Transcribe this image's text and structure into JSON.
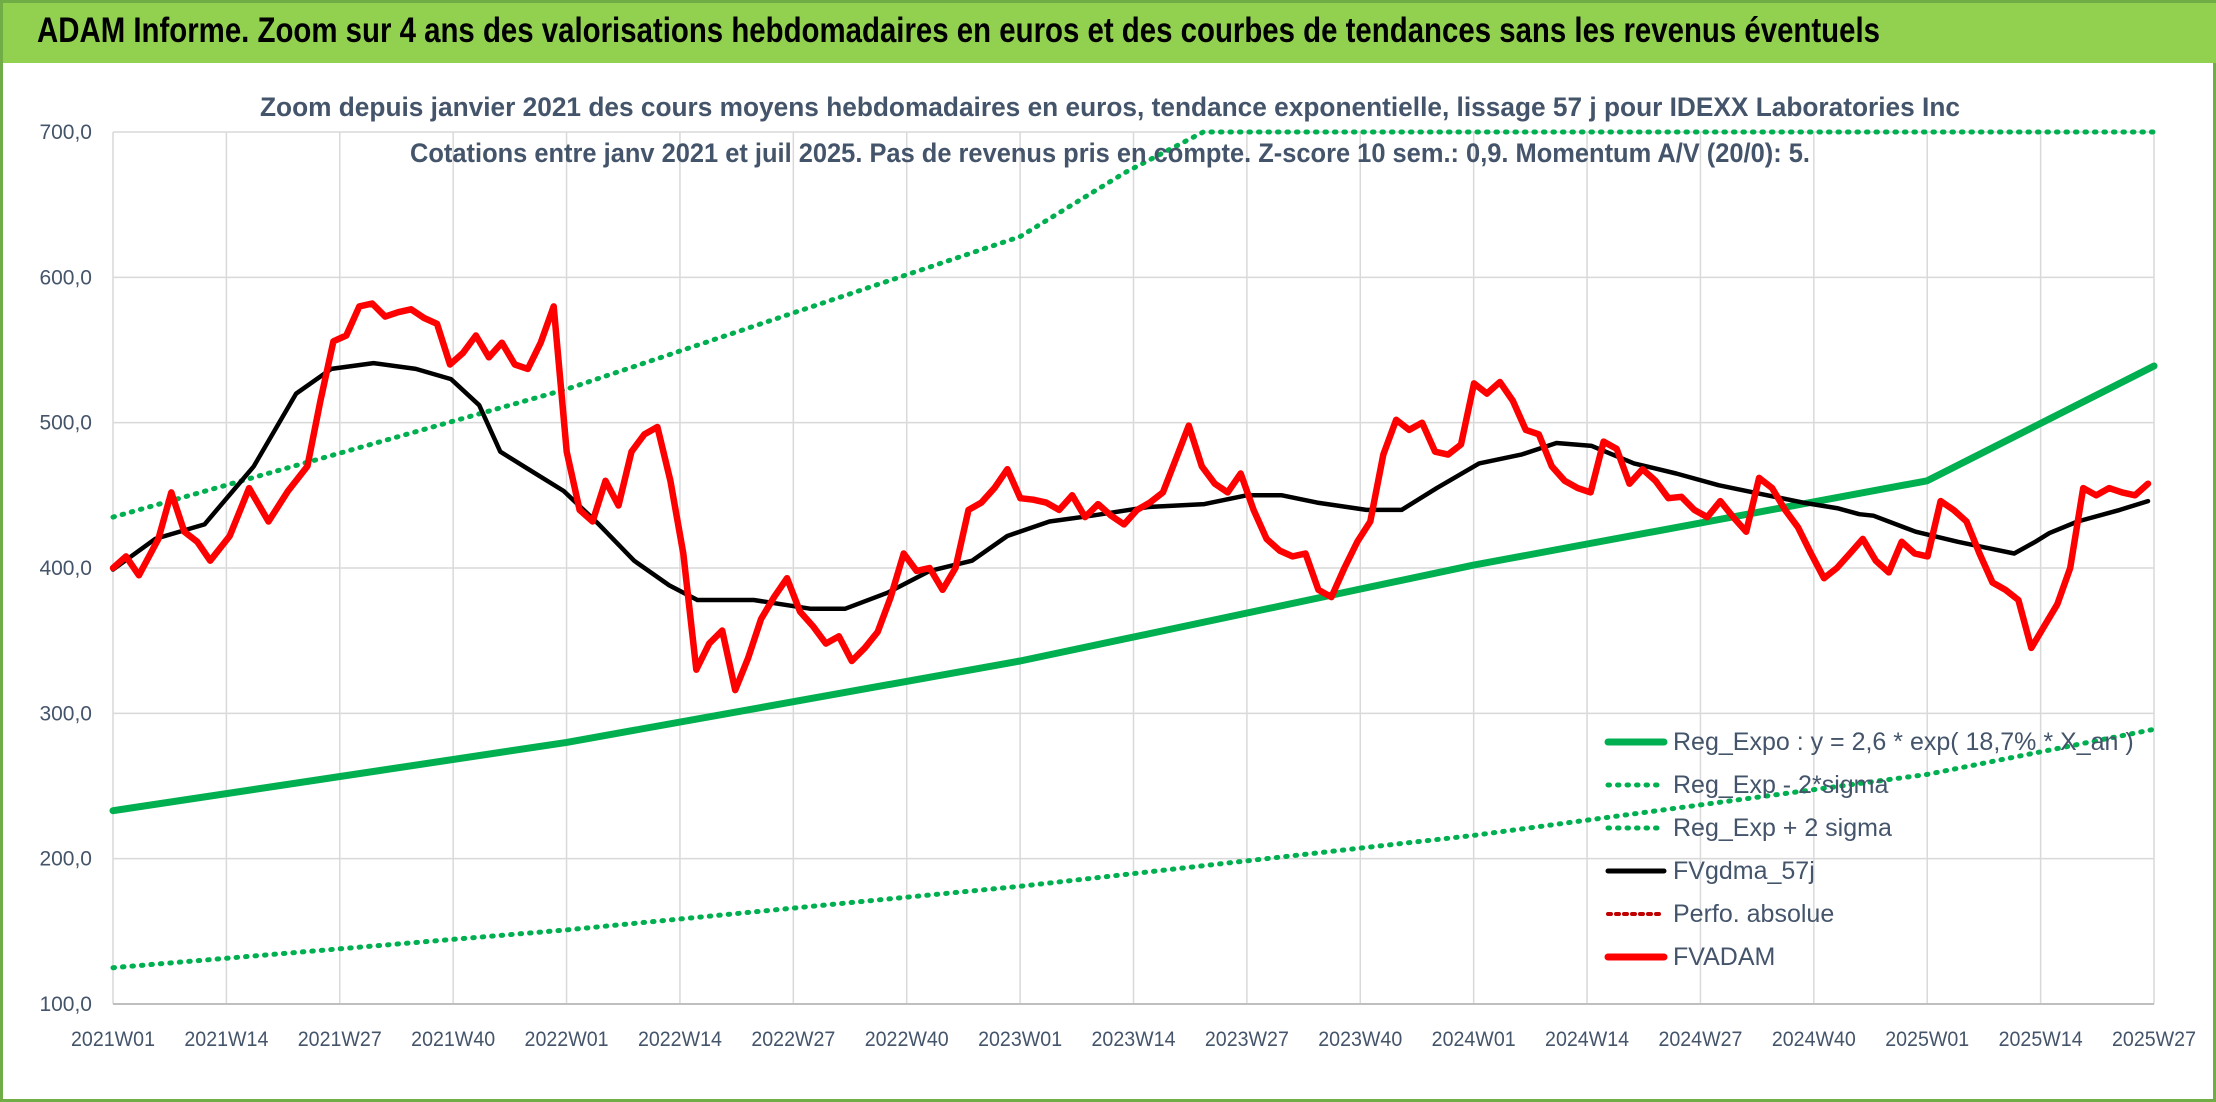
{
  "banner": {
    "title": "ADAM Informe. Zoom sur 4 ans des valorisations hebdomadaires en euros et des courbes de tendances sans les revenus éventuels"
  },
  "colors": {
    "banner": "#92d050",
    "frame": "#70ad47",
    "text": "#44546a",
    "regression": "#00b050",
    "average": "#000000",
    "price": "#ff0000",
    "perf": "#c00000",
    "grid": "#d9d9d9"
  },
  "chart_data": {
    "type": "line",
    "title": "Zoom depuis janvier 2021 des cours moyens hebdomadaires en euros, tendance exponentielle, lissage 57 j pour IDEXX Laboratories Inc",
    "subtitle": "Cotations entre janv 2021 et juil 2025. Pas de revenus pris en compte. Z-score 10 sem.: 0,9. Momentum A/V (20/0): 5.",
    "xlabel": "",
    "ylabel": "",
    "ylim": [
      100,
      700
    ],
    "yticks": [
      "100,0",
      "200,0",
      "300,0",
      "400,0",
      "500,0",
      "600,0",
      "700,0"
    ],
    "x_ticks": [
      "2021W01",
      "2021W14",
      "2021W27",
      "2021W40",
      "2022W01",
      "2022W14",
      "2022W27",
      "2022W40",
      "2023W01",
      "2023W14",
      "2023W27",
      "2023W40",
      "2024W01",
      "2024W14",
      "2024W27",
      "2024W40",
      "2025W01",
      "2025W14",
      "2025W27"
    ],
    "grid": true,
    "legend_position": "bottom-right",
    "legend": [
      {
        "name": "Reg_Expo : y = 2,6 * exp( 18,7% * X_an )",
        "style": "solid-green"
      },
      {
        "name": "Reg_Exp - 2*sigma",
        "style": "dotted-green"
      },
      {
        "name": "Reg_Exp + 2 sigma",
        "style": "dotted-green"
      },
      {
        "name": "FVgdma_57j",
        "style": "solid-black"
      },
      {
        "name": "Perfo. absolue",
        "style": "dotted-red"
      },
      {
        "name": "FVADAM",
        "style": "solid-red-thick"
      }
    ],
    "series": [
      {
        "name": "Reg_Expo : y = 2,6 * exp( 18,7% * X_an )",
        "points": [
          [
            0,
            233
          ],
          [
            52,
            280
          ],
          [
            104,
            336
          ],
          [
            156,
            402
          ],
          [
            208,
            460
          ],
          [
            234,
            539
          ]
        ]
      },
      {
        "name": "Reg_Exp - 2*sigma",
        "points": [
          [
            0,
            125
          ],
          [
            52,
            151
          ],
          [
            104,
            181
          ],
          [
            156,
            216
          ],
          [
            208,
            258
          ],
          [
            234,
            289
          ]
        ]
      },
      {
        "name": "Reg_Exp + 2 sigma",
        "points": [
          [
            0,
            435
          ],
          [
            52,
            523
          ],
          [
            104,
            628
          ],
          [
            116,
            672
          ],
          [
            125,
            700
          ],
          [
            234,
            700
          ]
        ]
      },
      {
        "name": "FVgdma_57j",
        "points": [
          [
            0,
            399
          ],
          [
            6,
            420
          ],
          [
            13,
            430
          ],
          [
            20,
            470
          ],
          [
            26,
            520
          ],
          [
            31,
            537
          ],
          [
            37,
            541
          ],
          [
            43,
            537
          ],
          [
            48,
            530
          ],
          [
            52,
            512
          ],
          [
            55,
            480
          ],
          [
            59,
            468
          ],
          [
            64,
            453
          ],
          [
            69,
            430
          ],
          [
            74,
            405
          ],
          [
            79,
            388
          ],
          [
            83,
            378
          ],
          [
            91,
            378
          ],
          [
            99,
            372
          ],
          [
            104,
            372
          ],
          [
            110,
            383
          ],
          [
            116,
            398
          ],
          [
            122,
            405
          ],
          [
            127,
            422
          ],
          [
            133,
            432
          ],
          [
            139,
            436
          ],
          [
            147,
            442
          ],
          [
            155,
            444
          ],
          [
            161,
            450
          ],
          [
            166,
            450
          ],
          [
            171,
            445
          ],
          [
            178,
            440
          ],
          [
            183,
            440
          ],
          [
            188,
            455
          ],
          [
            194,
            472
          ],
          [
            200,
            478
          ],
          [
            205,
            486
          ],
          [
            210,
            484
          ],
          [
            216,
            472
          ],
          [
            222,
            465
          ],
          [
            228,
            457
          ],
          [
            234,
            451
          ],
          [
            240,
            445
          ],
          [
            245,
            441
          ],
          [
            248,
            437
          ],
          [
            250,
            436
          ],
          [
            256,
            425
          ],
          [
            262,
            418
          ],
          [
            266,
            414
          ],
          [
            270,
            410
          ],
          [
            273,
            418
          ],
          [
            275,
            424
          ],
          [
            279,
            432
          ],
          [
            285,
            440
          ],
          [
            289,
            446
          ]
        ]
      },
      {
        "name": "FVADAM",
        "points": [
          [
            0,
            400
          ],
          [
            2,
            408
          ],
          [
            4,
            395
          ],
          [
            7,
            420
          ],
          [
            9,
            452
          ],
          [
            11,
            425
          ],
          [
            13,
            418
          ],
          [
            15,
            405
          ],
          [
            18,
            422
          ],
          [
            21,
            455
          ],
          [
            24,
            432
          ],
          [
            27,
            453
          ],
          [
            30,
            470
          ],
          [
            32,
            515
          ],
          [
            34,
            556
          ],
          [
            36,
            560
          ],
          [
            38,
            580
          ],
          [
            40,
            582
          ],
          [
            42,
            573
          ],
          [
            44,
            576
          ],
          [
            46,
            578
          ],
          [
            48,
            572
          ],
          [
            50,
            568
          ],
          [
            52,
            540
          ],
          [
            54,
            548
          ],
          [
            56,
            560
          ],
          [
            58,
            545
          ],
          [
            60,
            555
          ],
          [
            62,
            540
          ],
          [
            64,
            537
          ],
          [
            66,
            555
          ],
          [
            68,
            580
          ],
          [
            70,
            480
          ],
          [
            72,
            440
          ],
          [
            74,
            432
          ],
          [
            76,
            460
          ],
          [
            78,
            443
          ],
          [
            80,
            480
          ],
          [
            82,
            492
          ],
          [
            84,
            497
          ],
          [
            86,
            460
          ],
          [
            88,
            410
          ],
          [
            90,
            330
          ],
          [
            92,
            348
          ],
          [
            94,
            357
          ],
          [
            96,
            316
          ],
          [
            98,
            338
          ],
          [
            100,
            365
          ],
          [
            102,
            380
          ],
          [
            104,
            393
          ],
          [
            106,
            370
          ],
          [
            108,
            360
          ],
          [
            110,
            348
          ],
          [
            112,
            353
          ],
          [
            114,
            336
          ],
          [
            116,
            345
          ],
          [
            118,
            356
          ],
          [
            120,
            380
          ],
          [
            122,
            410
          ],
          [
            124,
            398
          ],
          [
            126,
            400
          ],
          [
            128,
            385
          ],
          [
            130,
            400
          ],
          [
            132,
            440
          ],
          [
            134,
            445
          ],
          [
            136,
            455
          ],
          [
            138,
            468
          ],
          [
            140,
            448
          ],
          [
            142,
            447
          ],
          [
            144,
            445
          ],
          [
            146,
            440
          ],
          [
            148,
            450
          ],
          [
            150,
            435
          ],
          [
            152,
            444
          ],
          [
            154,
            436
          ],
          [
            156,
            430
          ],
          [
            158,
            440
          ],
          [
            160,
            445
          ],
          [
            162,
            452
          ],
          [
            164,
            475
          ],
          [
            166,
            498
          ],
          [
            168,
            470
          ],
          [
            170,
            458
          ],
          [
            172,
            452
          ],
          [
            174,
            465
          ],
          [
            176,
            440
          ],
          [
            178,
            420
          ],
          [
            180,
            412
          ],
          [
            182,
            408
          ],
          [
            184,
            410
          ],
          [
            186,
            385
          ],
          [
            188,
            380
          ],
          [
            190,
            400
          ],
          [
            192,
            418
          ],
          [
            194,
            432
          ],
          [
            196,
            478
          ],
          [
            198,
            502
          ],
          [
            200,
            495
          ],
          [
            202,
            500
          ],
          [
            204,
            480
          ],
          [
            206,
            478
          ],
          [
            208,
            485
          ],
          [
            210,
            527
          ],
          [
            212,
            520
          ],
          [
            214,
            528
          ],
          [
            216,
            515
          ],
          [
            218,
            495
          ],
          [
            220,
            492
          ],
          [
            222,
            470
          ],
          [
            224,
            460
          ],
          [
            226,
            455
          ],
          [
            228,
            452
          ],
          [
            230,
            487
          ],
          [
            232,
            482
          ],
          [
            234,
            458
          ],
          [
            236,
            468
          ],
          [
            238,
            460
          ],
          [
            240,
            448
          ],
          [
            242,
            449
          ],
          [
            244,
            440
          ],
          [
            246,
            435
          ],
          [
            248,
            446
          ],
          [
            250,
            435
          ],
          [
            252,
            425
          ],
          [
            254,
            462
          ],
          [
            256,
            455
          ],
          [
            258,
            440
          ],
          [
            260,
            428
          ],
          [
            262,
            410
          ],
          [
            264,
            393
          ],
          [
            266,
            400
          ],
          [
            268,
            410
          ],
          [
            270,
            420
          ],
          [
            272,
            405
          ],
          [
            274,
            397
          ],
          [
            276,
            418
          ],
          [
            278,
            410
          ],
          [
            280,
            408
          ],
          [
            282,
            446
          ],
          [
            284,
            440
          ],
          [
            286,
            432
          ],
          [
            288,
            410
          ],
          [
            290,
            390
          ],
          [
            292,
            385
          ],
          [
            294,
            378
          ],
          [
            296,
            345
          ],
          [
            298,
            360
          ],
          [
            300,
            375
          ],
          [
            302,
            400
          ],
          [
            304,
            455
          ],
          [
            306,
            450
          ],
          [
            308,
            455
          ],
          [
            310,
            452
          ],
          [
            312,
            450
          ],
          [
            314,
            458
          ]
        ]
      }
    ]
  }
}
